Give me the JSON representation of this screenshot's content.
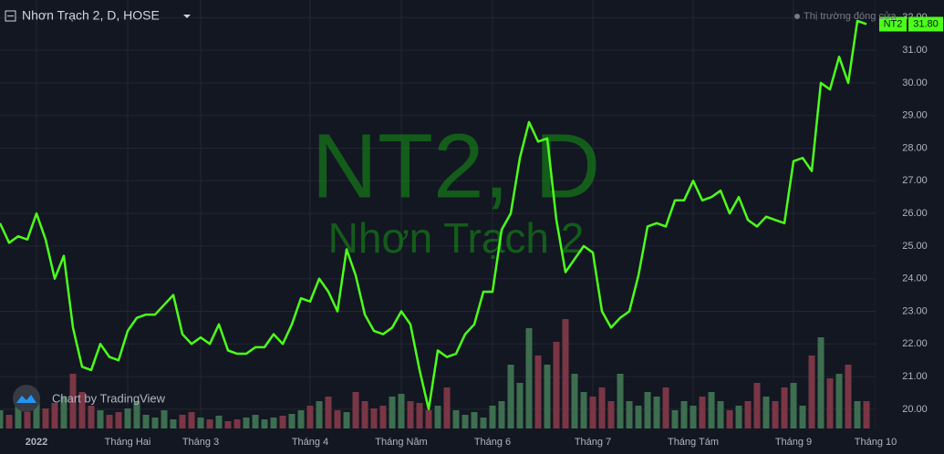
{
  "chart_data": {
    "type": "line",
    "title": "Nhơn Trạch 2, D, HOSE",
    "watermark": "NT2, D",
    "watermark_subtitle": "Nhơn Trạch 2",
    "status": "Thị trường đóng cửa",
    "credit": "Chart by TradingView",
    "categories": [
      null,
      null,
      null,
      null,
      "2022",
      null,
      null,
      null,
      null,
      null,
      null,
      null,
      null,
      null,
      "Tháng Hai",
      null,
      null,
      null,
      null,
      null,
      null,
      null,
      "Tháng 3",
      null,
      null,
      null,
      null,
      null,
      null,
      null,
      null,
      null,
      null,
      null,
      "Tháng 4",
      null,
      null,
      null,
      null,
      null,
      null,
      null,
      null,
      null,
      "Tháng Năm",
      null,
      null,
      null,
      null,
      null,
      null,
      null,
      null,
      null,
      "Tháng 6",
      null,
      null,
      null,
      null,
      null,
      null,
      null,
      null,
      null,
      null,
      "Tháng 7",
      null,
      null,
      null,
      null,
      null,
      null,
      null,
      null,
      null,
      null,
      "Tháng Tám",
      null,
      null,
      null,
      null,
      null,
      null,
      null,
      null,
      null,
      null,
      "Tháng 9",
      null,
      null,
      null,
      null,
      null,
      null,
      null,
      null,
      "Tháng 10"
    ],
    "series": [
      {
        "name": "NT2",
        "color": "#4cff1a",
        "values": [
          25.7,
          25.1,
          25.3,
          25.2,
          26.0,
          25.2,
          24.0,
          24.7,
          22.5,
          21.3,
          21.2,
          22.0,
          21.6,
          21.5,
          22.4,
          22.8,
          22.9,
          22.9,
          23.2,
          23.5,
          22.3,
          22.0,
          22.2,
          22.0,
          22.6,
          21.8,
          21.7,
          21.7,
          21.9,
          21.9,
          22.3,
          22.0,
          22.6,
          23.4,
          23.3,
          24.0,
          23.6,
          23.0,
          24.9,
          24.1,
          22.9,
          22.4,
          22.3,
          22.5,
          23.0,
          22.6,
          21.2,
          20.0,
          21.8,
          21.6,
          21.7,
          22.3,
          22.6,
          23.6,
          23.6,
          25.5,
          26.0,
          27.7,
          28.8,
          28.2,
          28.3,
          25.8,
          24.2,
          24.6,
          25.0,
          24.8,
          23.0,
          22.5,
          22.8,
          23.0,
          24.1,
          25.6,
          25.7,
          25.6,
          26.4,
          26.4,
          27.0,
          26.4,
          26.5,
          26.7,
          26.0,
          26.5,
          25.8,
          25.6,
          25.9,
          25.8,
          25.7,
          27.6,
          27.7,
          27.3,
          30.0,
          29.8,
          30.8,
          30.0,
          31.9,
          31.8,
          null
        ],
        "value_labels": [
          null,
          null,
          null,
          null,
          null,
          null,
          null,
          null,
          null,
          null,
          null,
          null,
          null,
          null,
          null,
          null,
          null,
          null,
          null,
          null,
          null,
          null,
          null,
          null,
          null,
          null,
          null,
          null,
          null,
          null,
          null,
          null,
          null,
          null,
          null,
          null,
          null,
          null,
          null,
          null,
          null,
          null,
          null,
          null,
          null,
          null,
          null,
          null,
          null,
          null,
          null,
          null,
          null,
          null,
          null,
          null,
          null,
          null,
          null,
          null,
          null,
          null,
          null,
          null,
          null,
          null,
          null,
          null,
          null,
          null,
          null,
          null,
          null,
          null,
          null,
          null,
          null,
          null,
          null,
          null,
          null,
          null,
          null,
          null,
          null,
          null,
          null,
          null,
          null,
          null,
          null,
          null,
          null,
          null,
          null,
          "31.80",
          null
        ]
      },
      {
        "type": "bar",
        "axis": "y2",
        "up_color": "#3d6e4f",
        "down_color": "#7a3645",
        "values": [
          20,
          15,
          25,
          18,
          30,
          22,
          28,
          35,
          60,
          40,
          25,
          20,
          15,
          18,
          22,
          30,
          15,
          12,
          20,
          10,
          15,
          18,
          12,
          10,
          14,
          8,
          10,
          12,
          15,
          10,
          12,
          14,
          16,
          20,
          25,
          30,
          35,
          20,
          18,
          40,
          30,
          22,
          25,
          35,
          38,
          30,
          28,
          20,
          25,
          45,
          20,
          15,
          18,
          12,
          25,
          30,
          70,
          50,
          110,
          80,
          70,
          95,
          120,
          60,
          40,
          35,
          45,
          30,
          60,
          30,
          25,
          40,
          35,
          45,
          20,
          30,
          25,
          35,
          40,
          30,
          20,
          25,
          30,
          50,
          35,
          30,
          45,
          50,
          25,
          80,
          100,
          55,
          60,
          70,
          30,
          30,
          null
        ]
      }
    ],
    "ylim": [
      19.41,
      32.54
    ],
    "yticks": [
      {
        "value": 20,
        "label": "20.00"
      },
      {
        "value": 21,
        "label": "21.00"
      },
      {
        "value": 22,
        "label": "22.00"
      },
      {
        "value": 23,
        "label": "23.00"
      },
      {
        "value": 24,
        "label": "24.00"
      },
      {
        "value": 25,
        "label": "25.00"
      },
      {
        "value": 26,
        "label": "26.00"
      },
      {
        "value": 27,
        "label": "27.00"
      },
      {
        "value": 28,
        "label": "28.00"
      },
      {
        "value": 29,
        "label": "29.00"
      },
      {
        "value": 30,
        "label": "30.00"
      },
      {
        "value": 31,
        "label": "31.00"
      },
      {
        "value": 32,
        "label": "32.00"
      }
    ],
    "y2lim": [
      0,
      470
    ],
    "grid": true
  }
}
